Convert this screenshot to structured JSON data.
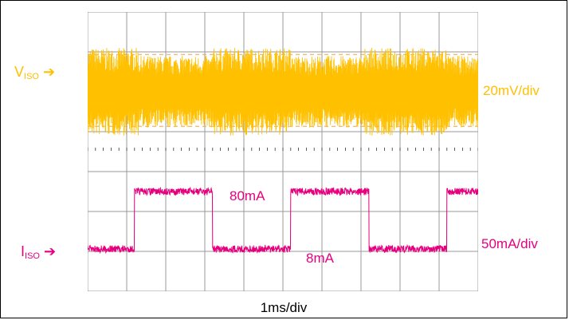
{
  "colors": {
    "voltage": "#ffc000",
    "current": "#e6007e",
    "grid": "#9a9a9a",
    "threshold": "#f4a040"
  },
  "labels": {
    "v_name": "V",
    "v_sub": "ISO",
    "i_name": "I",
    "i_sub": "ISO",
    "v_scale": "20mV/div",
    "i_scale": "50mA/div",
    "annot_high": "80mA",
    "annot_low": "8mA",
    "time_scale": "1ms/div"
  },
  "chart_data": {
    "type": "line",
    "title": "",
    "xlabel": "1ms/div",
    "x_unit": "ms",
    "xlim": [
      0,
      10
    ],
    "divisions": {
      "x": 10,
      "y": 7
    },
    "grid": true,
    "series": [
      {
        "name": "VISO",
        "scale": "20mV/div",
        "kind": "ripple",
        "peak_to_peak_mV": [
          {
            "t": [
              0,
              1.3
            ],
            "vpp_mV": 44
          },
          {
            "t": [
              1.3,
              3.2
            ],
            "vpp_mV": 36
          },
          {
            "t": [
              3.2,
              5.2
            ],
            "vpp_mV": 44
          },
          {
            "t": [
              5.2,
              7.1
            ],
            "vpp_mV": 36
          },
          {
            "t": [
              7.1,
              9.2
            ],
            "vpp_mV": 44
          },
          {
            "t": [
              9.2,
              10
            ],
            "vpp_mV": 36
          }
        ],
        "threshold_lines_div": [
          2.6,
          -2.4
        ]
      },
      {
        "name": "IISO",
        "scale": "50mA/div",
        "unit": "mA",
        "levels": [
          8,
          80
        ],
        "steps": [
          {
            "t": 0,
            "i_mA": 8
          },
          {
            "t": 1.2,
            "i_mA": 80
          },
          {
            "t": 3.2,
            "i_mA": 8
          },
          {
            "t": 5.2,
            "i_mA": 80
          },
          {
            "t": 7.2,
            "i_mA": 8
          },
          {
            "t": 9.2,
            "i_mA": 80
          }
        ]
      }
    ]
  }
}
